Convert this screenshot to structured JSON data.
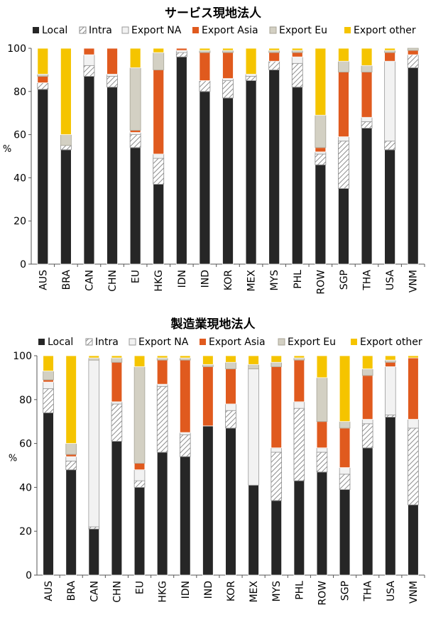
{
  "legend_labels": [
    "Local",
    "Intra",
    "Export NA",
    "Export Asia",
    "Export Eu",
    "Export other"
  ],
  "colors": {
    "Local": "#262626",
    "Intra": "#ffffff",
    "Export NA": "#f2f2f2",
    "Export Asia": "#e05a1e",
    "Export Eu": "#d3d0c3",
    "Export other": "#f5c400"
  },
  "chart_data": [
    {
      "type": "bar",
      "stacked": true,
      "title": "サービス現地法人",
      "ylabel": "%",
      "ylim": [
        0,
        100
      ],
      "yticks": [
        0,
        20,
        40,
        60,
        80,
        100
      ],
      "grid": false,
      "legend_position": "top",
      "categories": [
        "AUS",
        "BRA",
        "CAN",
        "CHN",
        "EU",
        "HKG",
        "IDN",
        "IND",
        "KOR",
        "MEX",
        "MYS",
        "PHL",
        "ROW",
        "SGP",
        "THA",
        "USA",
        "VNM"
      ],
      "series": [
        {
          "name": "Local",
          "values": [
            81,
            53,
            87,
            82,
            54,
            37,
            96,
            80,
            77,
            85,
            90,
            82,
            46,
            35,
            63,
            53,
            91
          ]
        },
        {
          "name": "Intra",
          "values": [
            3,
            2,
            5,
            5,
            6,
            12,
            2,
            5,
            8,
            2,
            4,
            11,
            5,
            22,
            3,
            4,
            6
          ]
        },
        {
          "name": "Export NA",
          "values": [
            0,
            0,
            5,
            1,
            1,
            2,
            1,
            0,
            1,
            1,
            0,
            3,
            1,
            2,
            2,
            37,
            0
          ]
        },
        {
          "name": "Export Asia",
          "values": [
            3,
            0,
            3,
            12,
            1,
            39,
            1,
            13,
            12,
            0,
            4,
            2,
            2,
            30,
            21,
            4,
            2
          ]
        },
        {
          "name": "Export Eu",
          "values": [
            1,
            5,
            0,
            0,
            29,
            8,
            0,
            1,
            1,
            0,
            1,
            1,
            15,
            5,
            3,
            1,
            1
          ]
        },
        {
          "name": "Export other",
          "values": [
            12,
            40,
            0,
            0,
            9,
            2,
            0,
            1,
            1,
            12,
            1,
            1,
            31,
            6,
            8,
            1,
            0
          ]
        }
      ]
    },
    {
      "type": "bar",
      "stacked": true,
      "title": "製造業現地法人",
      "ylabel": "%",
      "ylim": [
        0,
        100
      ],
      "yticks": [
        0,
        20,
        40,
        60,
        80,
        100
      ],
      "grid": false,
      "legend_position": "top",
      "categories": [
        "AUS",
        "BRA",
        "CAN",
        "CHN",
        "EU",
        "HKG",
        "IDN",
        "IND",
        "KOR",
        "MEX",
        "MYS",
        "PHL",
        "ROW",
        "SGP",
        "THA",
        "USA",
        "VNM"
      ],
      "series": [
        {
          "name": "Local",
          "values": [
            74,
            48,
            21,
            61,
            40,
            56,
            54,
            68,
            67,
            41,
            34,
            43,
            47,
            39,
            58,
            72,
            32
          ]
        },
        {
          "name": "Intra",
          "values": [
            11,
            4,
            1,
            17,
            3,
            30,
            10,
            0,
            8,
            0,
            22,
            33,
            9,
            7,
            11,
            1,
            35
          ]
        },
        {
          "name": "Export NA",
          "values": [
            3,
            2,
            76,
            1,
            5,
            1,
            1,
            0,
            3,
            53,
            2,
            3,
            2,
            3,
            2,
            22,
            4
          ]
        },
        {
          "name": "Export Asia",
          "values": [
            1,
            1,
            0,
            18,
            3,
            11,
            33,
            27,
            16,
            0,
            37,
            19,
            12,
            18,
            20,
            2,
            28
          ]
        },
        {
          "name": "Export Eu",
          "values": [
            4,
            5,
            1,
            2,
            44,
            1,
            1,
            1,
            3,
            2,
            2,
            1,
            20,
            3,
            3,
            1,
            0
          ]
        },
        {
          "name": "Export other",
          "values": [
            7,
            40,
            1,
            1,
            5,
            1,
            1,
            4,
            3,
            4,
            3,
            1,
            10,
            30,
            6,
            2,
            1
          ]
        }
      ]
    }
  ]
}
